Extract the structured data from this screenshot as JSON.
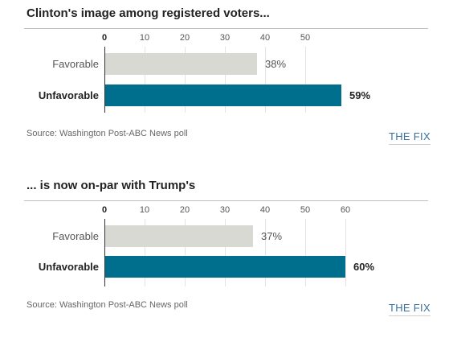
{
  "colors": {
    "accent": "#006f8e",
    "muted_bar": "#d9d9d4"
  },
  "chart_data": [
    {
      "type": "bar",
      "orientation": "horizontal",
      "title": "Clinton's image among registered voters...",
      "categories": [
        "Favorable",
        "Unfavorable"
      ],
      "values": [
        38,
        59
      ],
      "value_labels": [
        "38%",
        "59%"
      ],
      "xlim": [
        0,
        60
      ],
      "ticks": [
        0,
        10,
        20,
        30,
        40,
        50
      ],
      "tick_labels": [
        "0",
        "10",
        "20",
        "30",
        "40",
        "50"
      ],
      "highlight": [
        false,
        true
      ],
      "grid": true,
      "source": "Source: Washington Post-ABC News poll",
      "brand": "THE FIX"
    },
    {
      "type": "bar",
      "orientation": "horizontal",
      "title": "... is now on-par with Trump's",
      "categories": [
        "Favorable",
        "Unfavorable"
      ],
      "values": [
        37,
        60
      ],
      "value_labels": [
        "37%",
        "60%"
      ],
      "xlim": [
        0,
        60
      ],
      "ticks": [
        0,
        10,
        20,
        30,
        40,
        50,
        60
      ],
      "tick_labels": [
        "0",
        "10",
        "20",
        "30",
        "40",
        "50",
        "60"
      ],
      "highlight": [
        false,
        true
      ],
      "grid": true,
      "source": "Source: Washington Post-ABC News poll",
      "brand": "THE FIX"
    }
  ]
}
